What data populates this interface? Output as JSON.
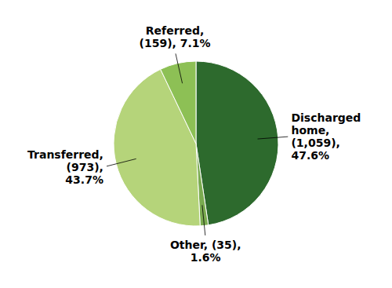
{
  "chart_data": {
    "type": "pie",
    "values": [
      47.6,
      1.6,
      43.7,
      7.1
    ],
    "colors": [
      "#2d6a2d",
      "#7aab50",
      "#b5d47a",
      "#8dc055"
    ],
    "annotations": [
      "Discharged\nhome,\n(1,059),\n47.6%",
      "Other, (35),\n1.6%",
      "Transferred,\n(973),\n43.7%",
      "Referred,\n(159), 7.1%"
    ]
  }
}
